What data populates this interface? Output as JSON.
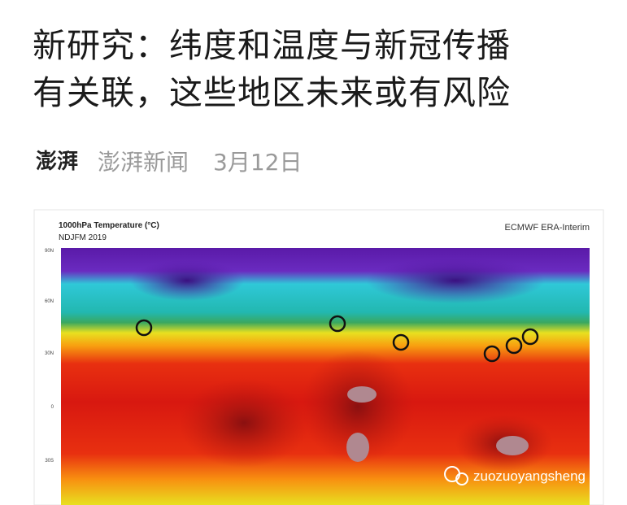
{
  "article": {
    "title_lines": [
      "新研究：纬度和温度与新冠传播",
      "有关联，这些地区未来或有风险"
    ],
    "source_logo": "澎湃",
    "source": "澎湃新闻",
    "date": "3月12日",
    "figure": {
      "title": "1000hPa Temperature (°C)",
      "subtitle": "NDJFM 2019",
      "credit": "ECMWF ERA-Interim",
      "lat_labels": [
        "90N",
        "60N",
        "30N",
        "0",
        "30S"
      ]
    },
    "watermark": "zuozuoyangsheng"
  }
}
